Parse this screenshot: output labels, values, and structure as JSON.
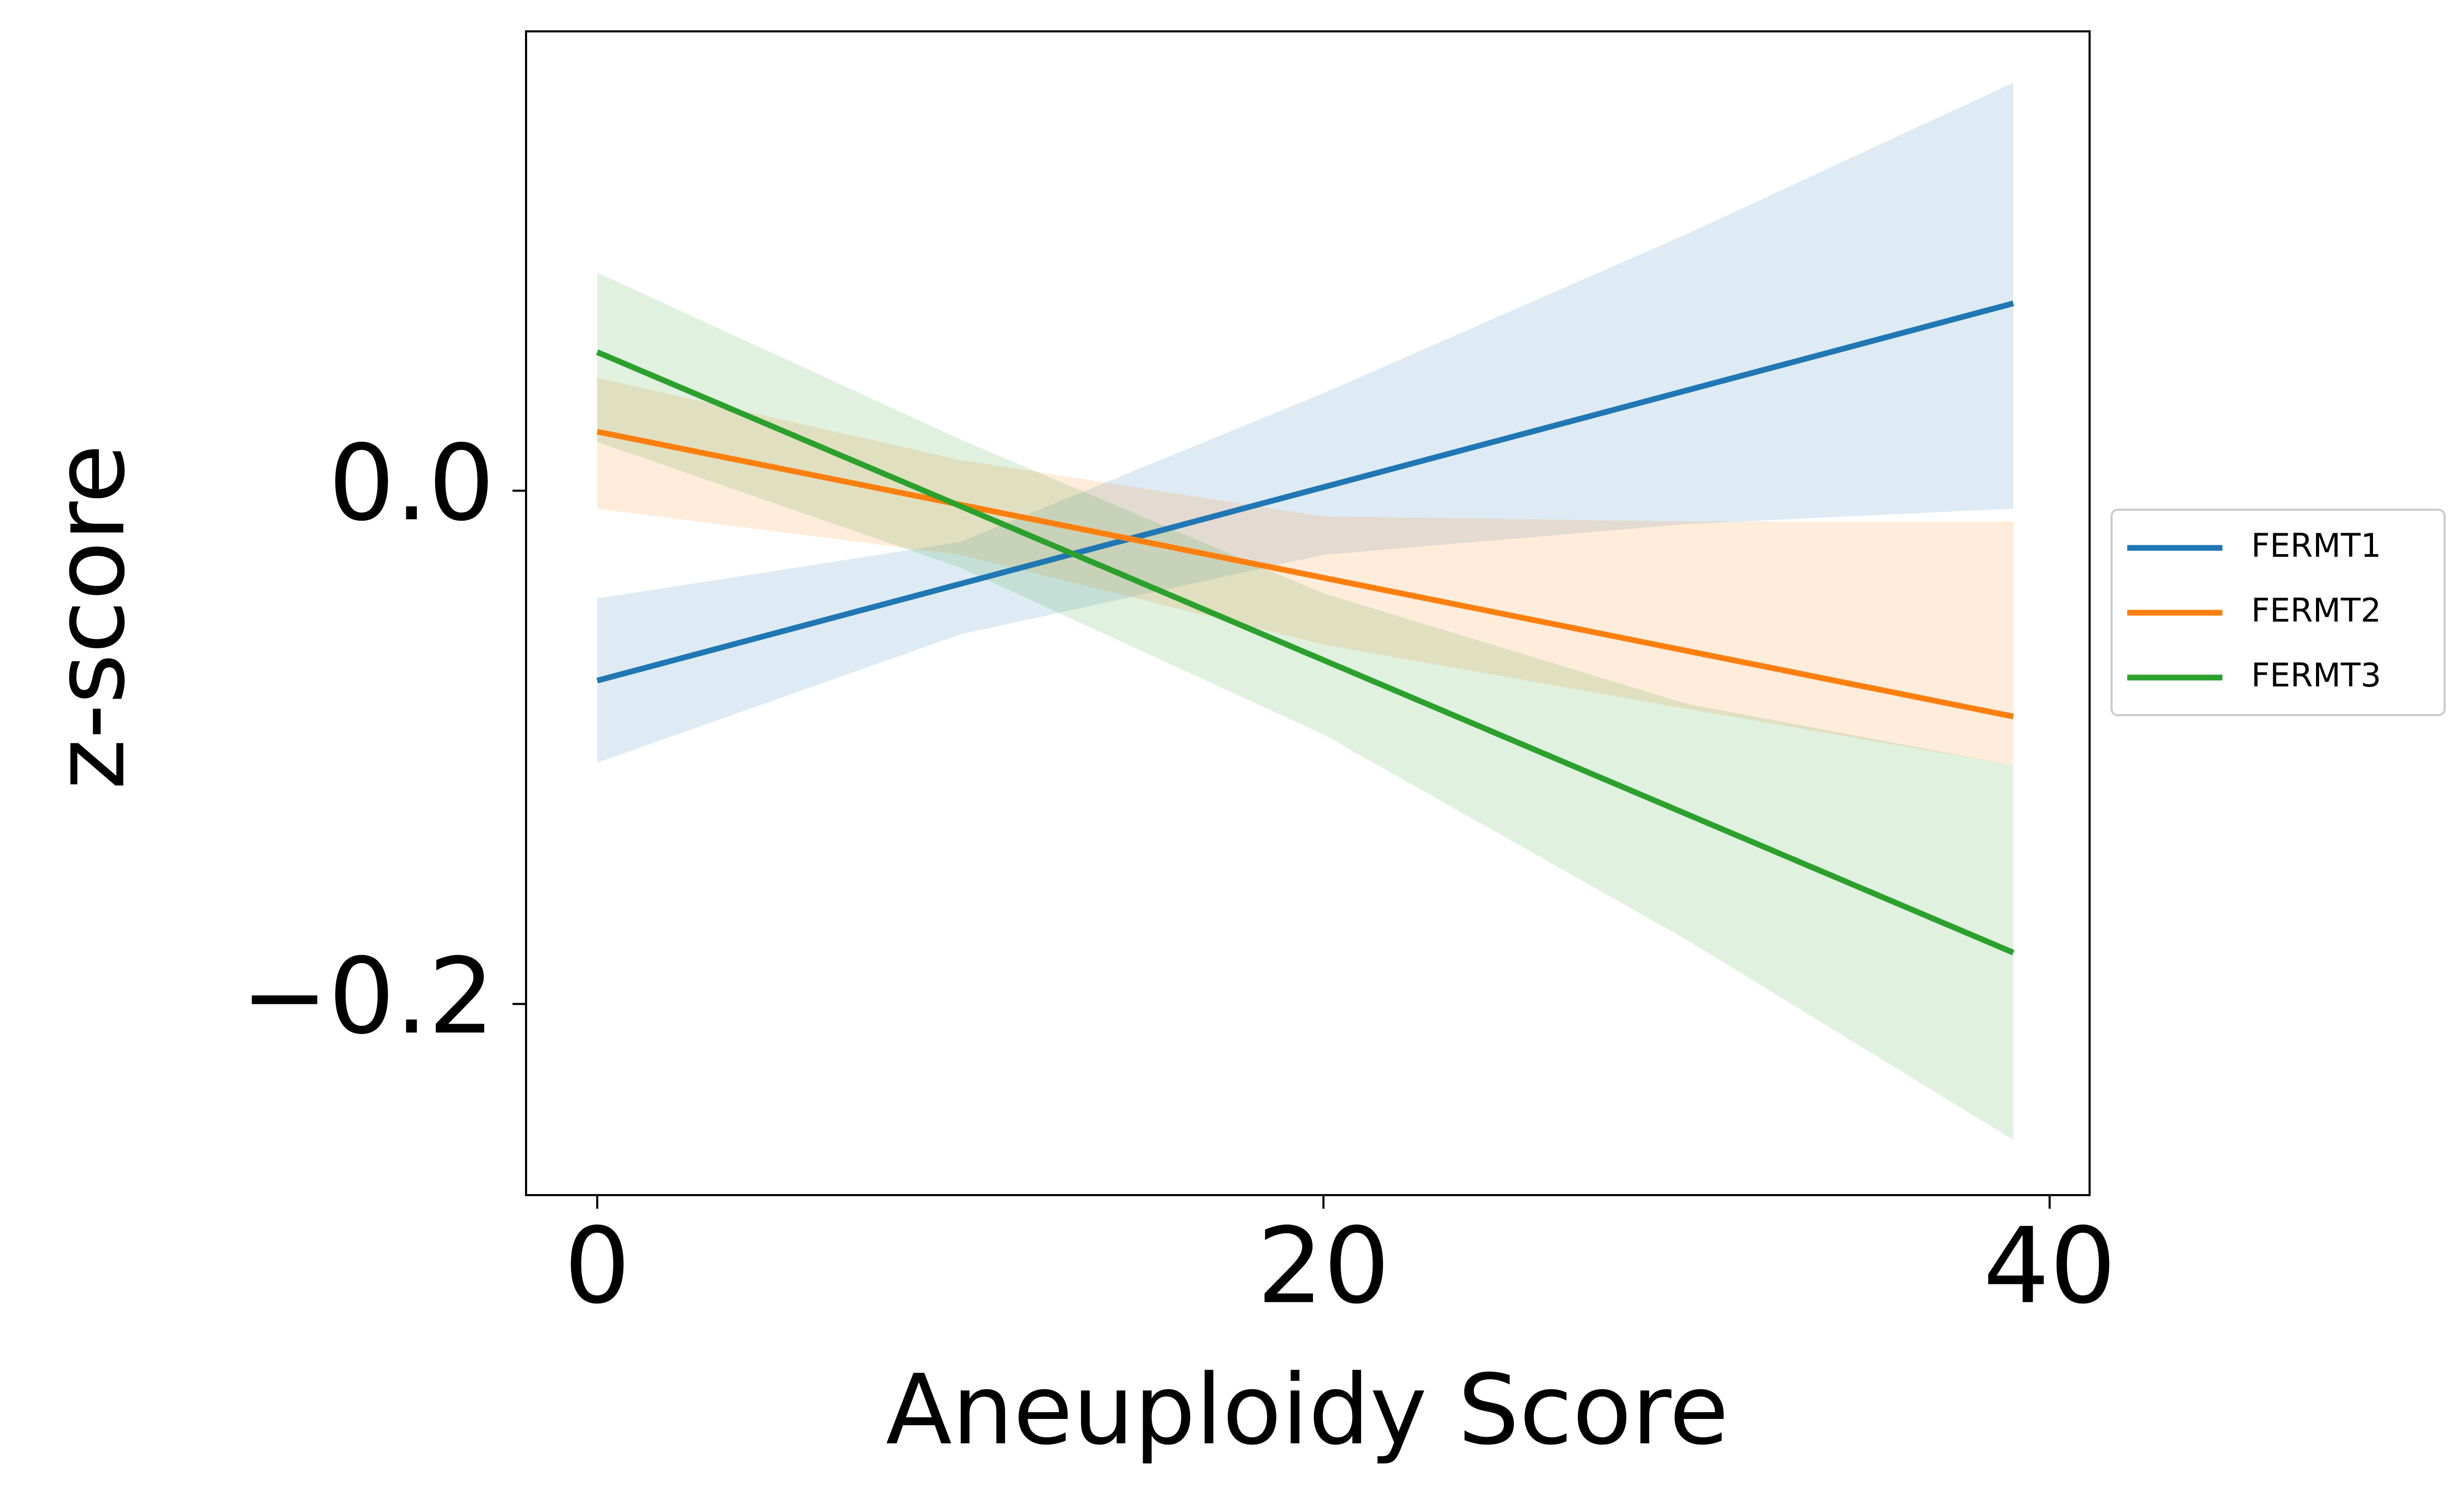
{
  "chart_data": {
    "type": "line",
    "xlabel": "Aneuploidy Score",
    "ylabel": "z-score",
    "xlim": [
      -1.96,
      41.1
    ],
    "ylim": [
      -0.2745,
      0.179
    ],
    "xticks": [
      0,
      20,
      40
    ],
    "yticks": [
      {
        "value": -0.2,
        "label": "−0.2"
      },
      {
        "value": 0,
        "label": "0.0"
      }
    ],
    "legend": "right",
    "series": [
      {
        "name": "FERMT1",
        "color": "#1f77b4",
        "x": [
          0,
          39
        ],
        "values": [
          -0.074,
          0.073
        ],
        "band_x": [
          0,
          10,
          20,
          30,
          39
        ],
        "band_upper": [
          -0.042,
          -0.02,
          0.038,
          0.1,
          0.159
        ],
        "band_lower": [
          -0.106,
          -0.056,
          -0.025,
          -0.013,
          -0.007
        ]
      },
      {
        "name": "FERMT2",
        "color": "#ff7f0e",
        "x": [
          0,
          39
        ],
        "values": [
          0.023,
          -0.088
        ],
        "band_x": [
          0,
          10,
          20,
          30,
          39
        ],
        "band_upper": [
          0.044,
          0.012,
          -0.01,
          -0.012,
          -0.012
        ],
        "band_lower": [
          -0.007,
          -0.025,
          -0.06,
          -0.085,
          -0.107
        ]
      },
      {
        "name": "FERMT3",
        "color": "#2ca02c",
        "x": [
          0,
          39
        ],
        "values": [
          0.054,
          -0.18
        ],
        "band_x": [
          0,
          10,
          20,
          30,
          39
        ],
        "band_upper": [
          0.085,
          0.02,
          -0.04,
          -0.083,
          -0.107
        ],
        "band_lower": [
          0.019,
          -0.03,
          -0.095,
          -0.175,
          -0.253
        ]
      }
    ]
  }
}
